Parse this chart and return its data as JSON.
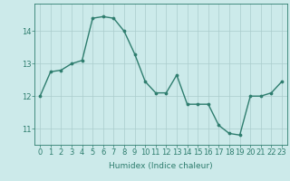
{
  "x": [
    0,
    1,
    2,
    3,
    4,
    5,
    6,
    7,
    8,
    9,
    10,
    11,
    12,
    13,
    14,
    15,
    16,
    17,
    18,
    19,
    20,
    21,
    22,
    23
  ],
  "y": [
    12.0,
    12.75,
    12.8,
    13.0,
    13.1,
    14.4,
    14.45,
    14.4,
    14.0,
    13.3,
    12.45,
    12.1,
    12.1,
    12.65,
    11.75,
    11.75,
    11.75,
    11.1,
    10.85,
    10.8,
    12.0,
    12.0,
    12.1,
    12.45
  ],
  "line_color": "#2e7d6e",
  "marker_color": "#2e7d6e",
  "background_color": "#cceaea",
  "grid_color": "#aacccc",
  "xlabel": "Humidex (Indice chaleur)",
  "xlim": [
    -0.5,
    23.5
  ],
  "ylim": [
    10.5,
    14.85
  ],
  "yticks": [
    11,
    12,
    13,
    14
  ],
  "xticks": [
    0,
    1,
    2,
    3,
    4,
    5,
    6,
    7,
    8,
    9,
    10,
    11,
    12,
    13,
    14,
    15,
    16,
    17,
    18,
    19,
    20,
    21,
    22,
    23
  ],
  "xlabel_fontsize": 6.5,
  "tick_fontsize": 6,
  "line_width": 1.0,
  "marker_size": 2.2
}
